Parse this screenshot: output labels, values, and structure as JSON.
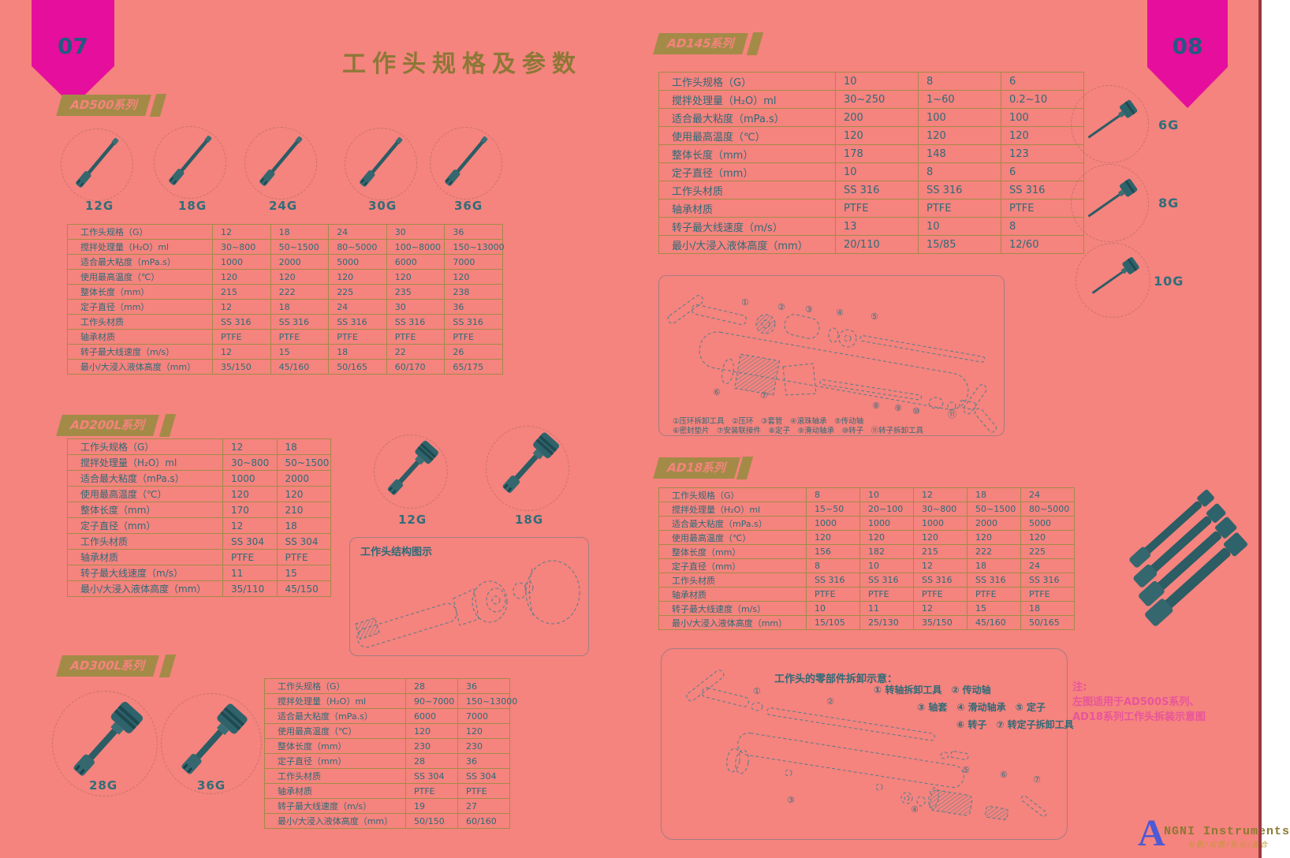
{
  "page": {
    "left_number": "07",
    "right_number": "08",
    "title": "工作头规格及参数"
  },
  "series": {
    "ad500": {
      "badge": "AD500系列",
      "products": [
        "12G",
        "18G",
        "24G",
        "30G",
        "36G"
      ],
      "table_rows": [
        {
          "label": "工作头规格（G）",
          "values": [
            "12",
            "18",
            "24",
            "30",
            "36"
          ]
        },
        {
          "label": "搅拌处理量（H₂O）ml",
          "values": [
            "30~800",
            "50~1500",
            "80~5000",
            "100~8000",
            "150~13000"
          ]
        },
        {
          "label": "适合最大粘度（mPa.s）",
          "values": [
            "1000",
            "2000",
            "5000",
            "6000",
            "7000"
          ]
        },
        {
          "label": "使用最高温度（℃）",
          "values": [
            "120",
            "120",
            "120",
            "120",
            "120"
          ]
        },
        {
          "label": "整体长度（mm）",
          "values": [
            "215",
            "222",
            "225",
            "235",
            "238"
          ]
        },
        {
          "label": "定子直径（mm）",
          "values": [
            "12",
            "18",
            "24",
            "30",
            "36"
          ]
        },
        {
          "label": "工作头材质",
          "values": [
            "SS 316",
            "SS 316",
            "SS 316",
            "SS 316",
            "SS 316"
          ]
        },
        {
          "label": "轴承材质",
          "values": [
            "PTFE",
            "PTFE",
            "PTFE",
            "PTFE",
            "PTFE"
          ]
        },
        {
          "label": "转子最大线速度（m/s）",
          "values": [
            "12",
            "15",
            "18",
            "22",
            "26"
          ]
        },
        {
          "label": "最小/大浸入液体高度（mm）",
          "values": [
            "35/150",
            "45/160",
            "50/165",
            "60/170",
            "65/175"
          ]
        }
      ]
    },
    "ad200l": {
      "badge": "AD200L系列",
      "products": [
        "12G",
        "18G"
      ],
      "table_rows": [
        {
          "label": "工作头规格（G）",
          "values": [
            "12",
            "18"
          ]
        },
        {
          "label": "搅拌处理量（H₂O）ml",
          "values": [
            "30~800",
            "50~1500"
          ]
        },
        {
          "label": "适合最大粘度（mPa.s）",
          "values": [
            "1000",
            "2000"
          ]
        },
        {
          "label": "使用最高温度（℃）",
          "values": [
            "120",
            "120"
          ]
        },
        {
          "label": "整体长度（mm）",
          "values": [
            "170",
            "210"
          ]
        },
        {
          "label": "定子直径（mm）",
          "values": [
            "12",
            "18"
          ]
        },
        {
          "label": "工作头材质",
          "values": [
            "SS 304",
            "SS 304"
          ]
        },
        {
          "label": "轴承材质",
          "values": [
            "PTFE",
            "PTFE"
          ]
        },
        {
          "label": "转子最大线速度（m/s）",
          "values": [
            "11",
            "15"
          ]
        },
        {
          "label": "最小/大浸入液体高度（mm）",
          "values": [
            "35/110",
            "45/150"
          ]
        }
      ]
    },
    "ad300l": {
      "badge": "AD300L系列",
      "products": [
        "28G",
        "36G"
      ],
      "table_rows": [
        {
          "label": "工作头规格（G）",
          "values": [
            "28",
            "36"
          ]
        },
        {
          "label": "搅拌处理量（H₂O）ml",
          "values": [
            "90~7000",
            "150~13000"
          ]
        },
        {
          "label": "适合最大粘度（mPa.s）",
          "values": [
            "6000",
            "7000"
          ]
        },
        {
          "label": "使用最高温度（℃）",
          "values": [
            "120",
            "120"
          ]
        },
        {
          "label": "整体长度（mm）",
          "values": [
            "230",
            "230"
          ]
        },
        {
          "label": "定子直径（mm）",
          "values": [
            "28",
            "36"
          ]
        },
        {
          "label": "工作头材质",
          "values": [
            "SS 304",
            "SS 304"
          ]
        },
        {
          "label": "轴承材质",
          "values": [
            "PTFE",
            "PTFE"
          ]
        },
        {
          "label": "转子最大线速度（m/s）",
          "values": [
            "19",
            "27"
          ]
        },
        {
          "label": "最小/大浸入液体高度（mm）",
          "values": [
            "50/150",
            "60/160"
          ]
        }
      ]
    },
    "ad145": {
      "badge": "AD145系列",
      "products": [
        "6G",
        "8G",
        "10G"
      ],
      "table_rows": [
        {
          "label": "工作头规格（G）",
          "values": [
            "10",
            "8",
            "6"
          ]
        },
        {
          "label": "搅拌处理量（H₂O）ml",
          "values": [
            "30~250",
            "1~60",
            "0.2~10"
          ]
        },
        {
          "label": "适合最大粘度（mPa.s）",
          "values": [
            "200",
            "100",
            "100"
          ]
        },
        {
          "label": "使用最高温度（℃）",
          "values": [
            "120",
            "120",
            "120"
          ]
        },
        {
          "label": "整体长度（mm）",
          "values": [
            "178",
            "148",
            "123"
          ]
        },
        {
          "label": "定子直径（mm）",
          "values": [
            "10",
            "8",
            "6"
          ]
        },
        {
          "label": "工作头材质",
          "values": [
            "SS 316",
            "SS 316",
            "SS 316"
          ]
        },
        {
          "label": "轴承材质",
          "values": [
            "PTFE",
            "PTFE",
            "PTFE"
          ]
        },
        {
          "label": "转子最大线速度（m/s）",
          "values": [
            "13",
            "10",
            "8"
          ]
        },
        {
          "label": "最小/大浸入液体高度（mm）",
          "values": [
            "20/110",
            "15/85",
            "12/60"
          ]
        }
      ]
    },
    "ad18": {
      "badge": "AD18系列",
      "table_rows": [
        {
          "label": "工作头规格（G）",
          "values": [
            "8",
            "10",
            "12",
            "18",
            "24"
          ]
        },
        {
          "label": "搅拌处理量（H₂O）ml",
          "values": [
            "15~50",
            "20~100",
            "30~800",
            "50~1500",
            "80~5000"
          ]
        },
        {
          "label": "适合最大粘度（mPa.s）",
          "values": [
            "1000",
            "1000",
            "1000",
            "2000",
            "5000"
          ]
        },
        {
          "label": "使用最高温度（℃）",
          "values": [
            "120",
            "120",
            "120",
            "120",
            "120"
          ]
        },
        {
          "label": "整体长度（mm）",
          "values": [
            "156",
            "182",
            "215",
            "222",
            "225"
          ]
        },
        {
          "label": "定子直径（mm）",
          "values": [
            "8",
            "10",
            "12",
            "18",
            "24"
          ]
        },
        {
          "label": "工作头材质",
          "values": [
            "SS 316",
            "SS 316",
            "SS 316",
            "SS 316",
            "SS 316"
          ]
        },
        {
          "label": "轴承材质",
          "values": [
            "PTFE",
            "PTFE",
            "PTFE",
            "PTFE",
            "PTFE"
          ]
        },
        {
          "label": "转子最大线速度（m/s）",
          "values": [
            "10",
            "11",
            "12",
            "15",
            "18"
          ]
        },
        {
          "label": "最小/大浸入液体高度（mm）",
          "values": [
            "15/105",
            "25/130",
            "35/150",
            "45/160",
            "50/165"
          ]
        }
      ]
    }
  },
  "structure_box": {
    "title": "工作头结构图示"
  },
  "diagram1": {
    "caption_line1": "①压环拆卸工具　②压环　③套管　④滚珠轴承　⑤传动轴",
    "caption_line2": "⑥密封垫片　⑦安装联接件　⑧定子　⑨滑动轴承　⑩转子　⑪转子拆卸工具",
    "callouts": [
      "①",
      "②",
      "③",
      "④",
      "⑤",
      "⑥",
      "⑦",
      "⑧",
      "⑨",
      "⑩",
      "⑪"
    ]
  },
  "diagram2": {
    "title": "工作头的零部件拆卸示意：",
    "parts_line1": "① 转轴拆卸工具　② 传动轴",
    "parts_line2": "③ 轴套　④ 滑动轴承　⑤ 定子",
    "parts_line3": "⑥ 转子　⑦ 转定子拆卸工具",
    "callouts": [
      "①",
      "②",
      "③",
      "④",
      "⑤",
      "⑥",
      "⑦"
    ]
  },
  "note": {
    "line1": "注:",
    "line2": "左图适用于AD500S系列、",
    "line3": "AD18系列工作头拆装示意图"
  },
  "logo": {
    "initial": "A",
    "name": "NGNI Instruments",
    "tagline": "分散/均质/乳化/混合"
  },
  "colors": {
    "background": "#F5837E",
    "ribbon_magenta": "#E60E9C",
    "gold": "#A38B47",
    "table_text_teal": "#2E6B78",
    "note_pink": "#E8559B",
    "logo_blue": "#4E59D6"
  }
}
